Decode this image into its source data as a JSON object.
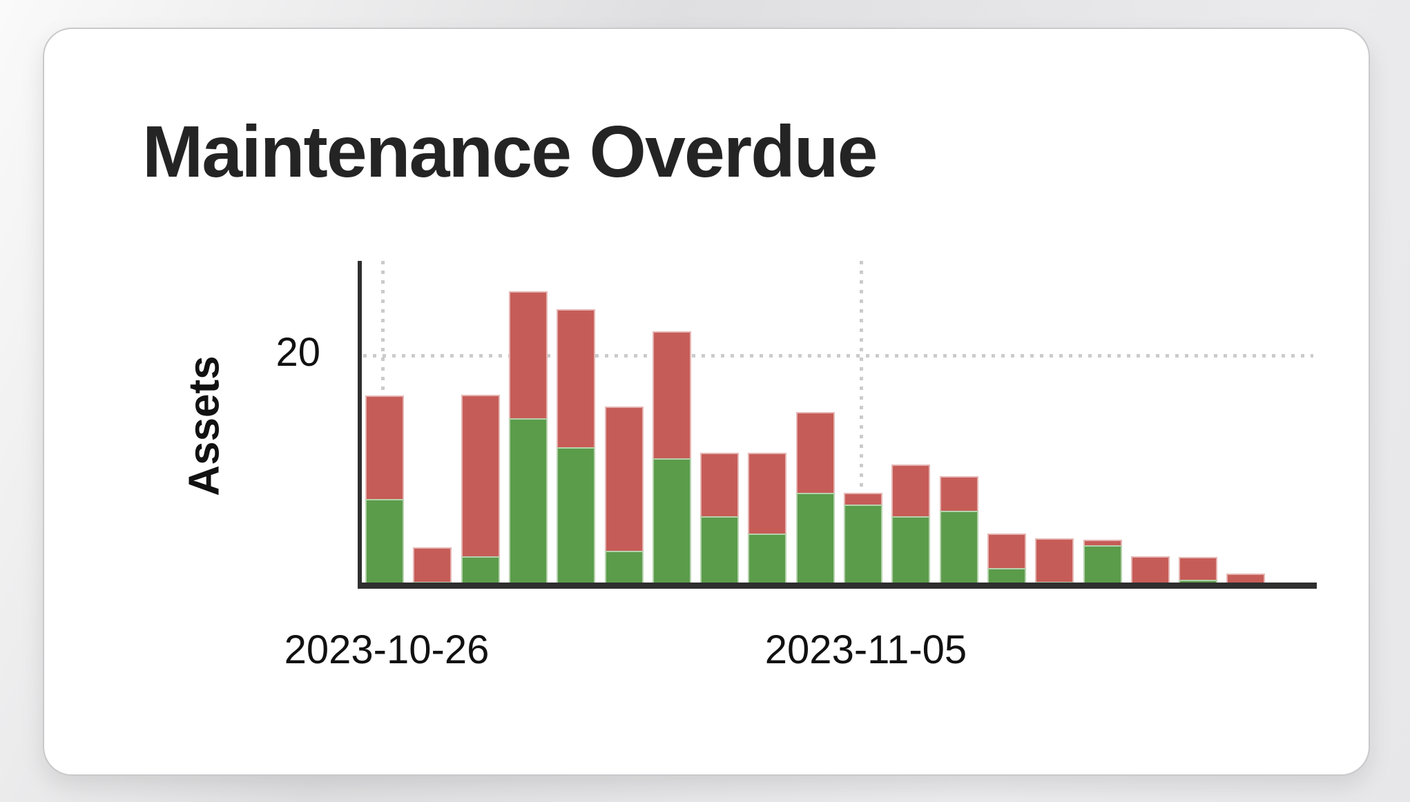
{
  "card": {
    "title": "Maintenance Overdue"
  },
  "chart": {
    "y_axis": {
      "label": "Assets",
      "tick_labels": [
        "20"
      ]
    },
    "x_axis": {
      "tick_labels": [
        "2023-10-26",
        "2023-11-05"
      ]
    },
    "colors": {
      "green": "#5b9c4b",
      "red": "#c65c57",
      "axis": "#2f2f2f",
      "grid": "#cbcbcb"
    }
  },
  "chart_data": {
    "type": "bar",
    "stacked": true,
    "title": "Maintenance Overdue",
    "xlabel": "",
    "ylabel": "Assets",
    "ylim": [
      0,
      28
    ],
    "grid": "dotted; horizontal line at y=20, vertical lines at 2023-10-26 and 2023-11-05",
    "legend": "none",
    "categories": [
      "2023-10-26",
      "2023-10-27",
      "2023-10-28",
      "2023-10-29",
      "2023-10-30",
      "2023-10-31",
      "2023-11-01",
      "2023-11-02",
      "2023-11-03",
      "2023-11-04",
      "2023-11-05",
      "2023-11-06",
      "2023-11-07",
      "2023-11-08",
      "2023-11-09",
      "2023-11-10",
      "2023-11-11",
      "2023-11-12",
      "2023-11-13"
    ],
    "x_tick_labels_shown": [
      "2023-10-26",
      "2023-11-05"
    ],
    "y_tick_labels_shown": [
      20
    ],
    "series": [
      {
        "name": "Green (bottom stack)",
        "color": "#5b9c4b",
        "values": [
          7.5,
          0.3,
          2.5,
          14.5,
          12,
          3,
          11,
          6,
          4.5,
          8,
          7,
          6,
          6.5,
          1.5,
          0.3,
          3.5,
          0,
          0.5,
          0
        ]
      },
      {
        "name": "Red (top stack)",
        "color": "#c65c57",
        "values": [
          9,
          3,
          14,
          11,
          12,
          12.5,
          11,
          5.5,
          7,
          7,
          1,
          4.5,
          3,
          3,
          3.8,
          0.5,
          2.5,
          2,
          1
        ]
      }
    ]
  }
}
